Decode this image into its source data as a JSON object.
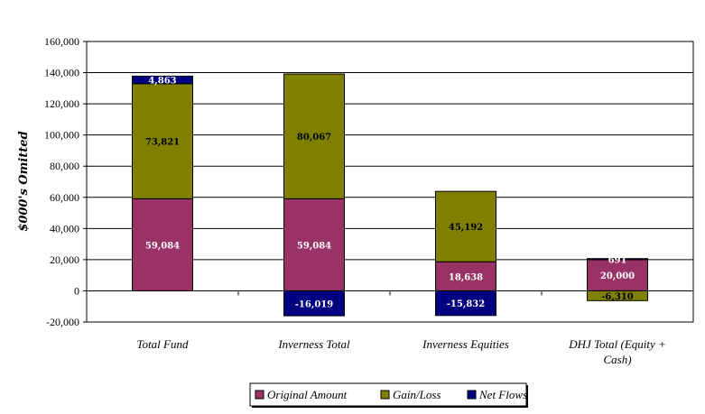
{
  "chart_data": {
    "type": "bar",
    "stacked": true,
    "title": "",
    "xlabel": "",
    "ylabel": "$000's Omitted",
    "ylim": [
      -20000,
      160000
    ],
    "yticks": [
      -20000,
      0,
      20000,
      40000,
      60000,
      80000,
      100000,
      120000,
      140000,
      160000
    ],
    "ytick_labels": [
      "-20,000",
      "0",
      "20,000",
      "40,000",
      "60,000",
      "80,000",
      "100,000",
      "120,000",
      "140,000",
      "160,000"
    ],
    "grid": true,
    "legend_position": "bottom",
    "categories": [
      "Total Fund",
      "Inverness Total",
      "Inverness Equities",
      "DHJ Total (Equity + Cash)"
    ],
    "series": [
      {
        "name": "Original Amount",
        "color": "#993366",
        "values": [
          59084,
          59084,
          18638,
          20000
        ],
        "labels": [
          "59,084",
          "59,084",
          "18,638",
          "20,000"
        ]
      },
      {
        "name": "Gain/Loss",
        "color": "#808000",
        "values": [
          73821,
          80067,
          45192,
          -6310
        ],
        "labels": [
          "73,821",
          "80,067",
          "45,192",
          "-6,310"
        ]
      },
      {
        "name": "Net Flows",
        "color": "#000080",
        "values": [
          4863,
          -16019,
          -15832,
          691
        ],
        "labels": [
          "4,863",
          "-16,019",
          "-15,832",
          "691"
        ]
      }
    ]
  }
}
